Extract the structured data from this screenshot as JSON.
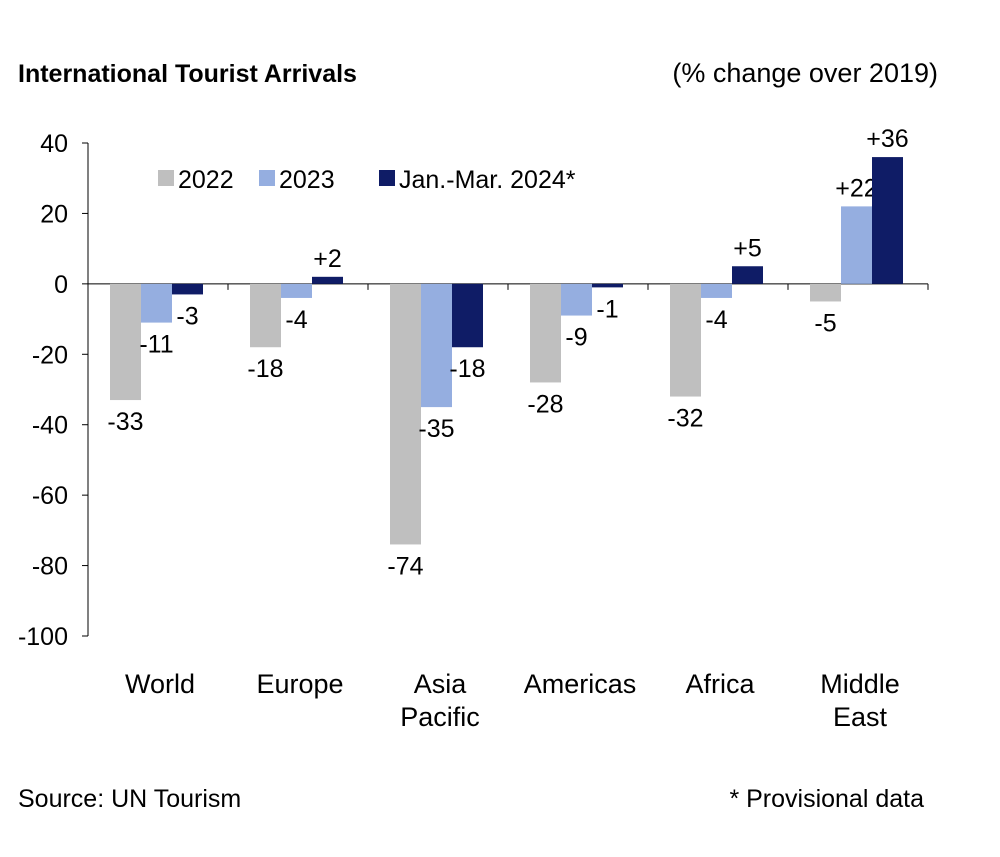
{
  "header": {
    "title": "International Tourist Arrivals",
    "unit_note": "(% change over 2019)"
  },
  "footer": {
    "source": "Source: UN Tourism",
    "note": "* Provisional data"
  },
  "chart_data": {
    "type": "bar",
    "title": "International Tourist Arrivals",
    "subtitle": "(% change over 2019)",
    "categories": [
      [
        "World"
      ],
      [
        "Europe"
      ],
      [
        "Asia",
        "Pacific"
      ],
      [
        "Americas"
      ],
      [
        "Africa"
      ],
      [
        "Middle",
        "East"
      ]
    ],
    "series": [
      {
        "name": "2022",
        "color": "#bfbfbf",
        "values": [
          -33,
          -18,
          -74,
          -28,
          -32,
          -5
        ],
        "labels": [
          "-33",
          "-18",
          "-74",
          "-28",
          "-32",
          "-5"
        ]
      },
      {
        "name": "2023",
        "color": "#95aee0",
        "values": [
          -11,
          -4,
          -35,
          -9,
          -4,
          22
        ],
        "labels": [
          "-11",
          "-4",
          "-35",
          "-9",
          "-4",
          "+22"
        ]
      },
      {
        "name": "Jan.-Mar. 2024*",
        "color": "#0f1c66",
        "values": [
          -3,
          2,
          -18,
          -1,
          5,
          36
        ],
        "labels": [
          "-3",
          "+2",
          "-18",
          "-1",
          "+5",
          "+36"
        ]
      }
    ],
    "ylim": [
      -100,
      40
    ],
    "yticks": [
      40,
      20,
      0,
      -20,
      -40,
      -60,
      -80,
      -100
    ],
    "legend_position": "top-left",
    "grid": false
  }
}
